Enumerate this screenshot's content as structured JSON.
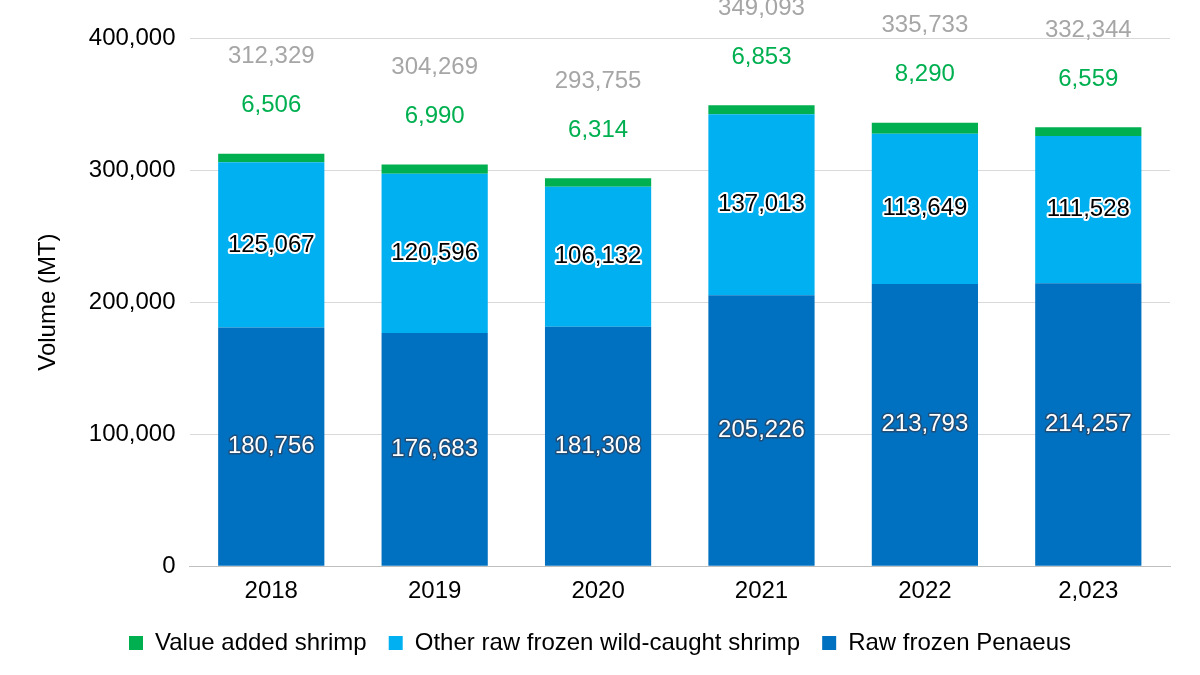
{
  "chart_data": {
    "type": "bar",
    "stacked": true,
    "grid": true,
    "legend": "bottom",
    "data_labels": true,
    "y_label": "Volume (MT)",
    "categories": [
      "2018",
      "2019",
      "2020",
      "2021",
      "2022",
      "2,023"
    ],
    "ylim": [
      0,
      400000
    ],
    "yticks": [
      0,
      {
        "value": 100000,
        "label": "100,000"
      },
      {
        "value": 200000,
        "label": "200,000"
      },
      {
        "value": 300000,
        "label": "300,000"
      },
      {
        "value": 400000,
        "label": "400,000"
      }
    ],
    "series": [
      {
        "name": "Raw frozen Penaeus",
        "color": "#0070c0",
        "values": [
          180756,
          176683,
          181308,
          205226,
          213793,
          214257
        ],
        "value_labels": [
          "180,756",
          "176,683",
          "181,308",
          "205,226",
          "213,793",
          "214,257"
        ]
      },
      {
        "name": "Other raw frozen wild-caught shrimp",
        "color": "#00b0f0",
        "values": [
          125067,
          120596,
          106132,
          137013,
          113649,
          111528
        ],
        "value_labels": [
          "125,067",
          "120,596",
          "106,132",
          "137,013",
          "113,649",
          "111,528"
        ]
      },
      {
        "name": "Value added shrimp",
        "color": "#00b050",
        "values": [
          6506,
          6990,
          6314,
          6853,
          8290,
          6559
        ],
        "value_labels": [
          "6,506",
          "6,990",
          "6,314",
          "6,853",
          "8,290",
          "6,559"
        ]
      }
    ],
    "totals": [
      312329,
      304269,
      293755,
      349093,
      335733,
      332344
    ],
    "total_labels": [
      "312,329",
      "304,269",
      "293,755",
      "349,093",
      "335,733",
      "332,344"
    ]
  }
}
